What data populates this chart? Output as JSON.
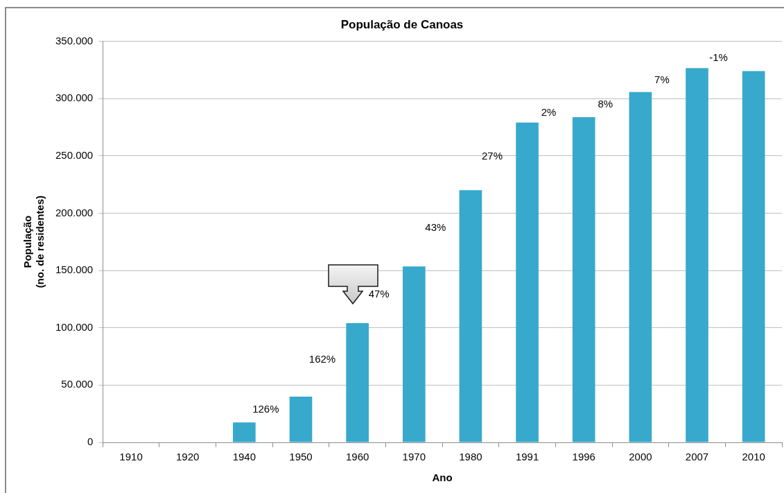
{
  "chart_data": {
    "type": "bar",
    "title": "População de Canoas",
    "xlabel": "Ano",
    "ylabel": "População\n(no. de residentes)",
    "categories": [
      "1910",
      "1920",
      "1940",
      "1950",
      "1960",
      "1970",
      "1980",
      "1991",
      "1996",
      "2000",
      "2007",
      "2010"
    ],
    "values": [
      null,
      null,
      17400,
      39900,
      104000,
      153500,
      220000,
      279000,
      283700,
      305600,
      326500,
      324000
    ],
    "color": "#37a9cc",
    "ylim": [
      0,
      350000
    ],
    "yticks": [
      {
        "value": 0,
        "label": "0"
      },
      {
        "value": 50000,
        "label": "50.000"
      },
      {
        "value": 100000,
        "label": "100.000"
      },
      {
        "value": 150000,
        "label": "150.000"
      },
      {
        "value": 200000,
        "label": "200.000"
      },
      {
        "value": 250000,
        "label": "250.000"
      },
      {
        "value": 300000,
        "label": "300.000"
      },
      {
        "value": 350000,
        "label": "350.000"
      }
    ],
    "grid": "y",
    "annotations": [
      "126%",
      "162%",
      "47%",
      "43%",
      "27%",
      "2%",
      "8%",
      "7%",
      "-1%"
    ]
  }
}
